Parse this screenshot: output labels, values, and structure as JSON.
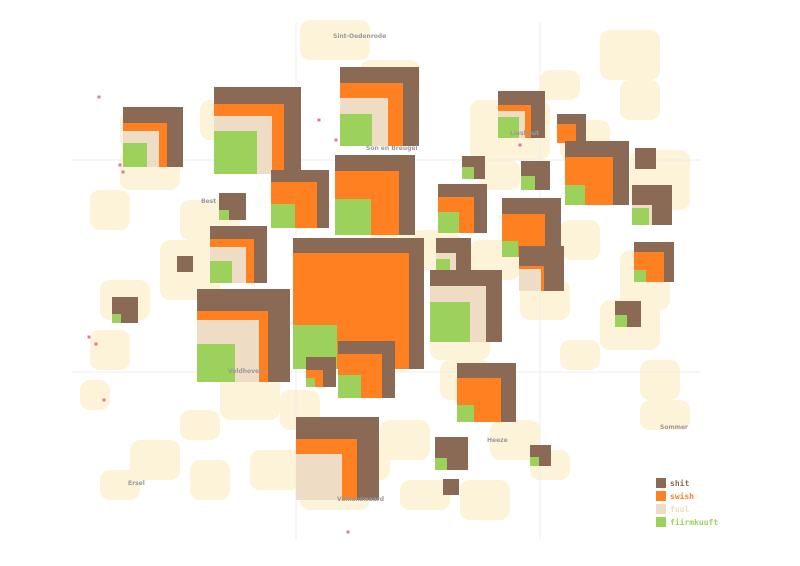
{
  "legend": {
    "title": "",
    "items": [
      {
        "label": "shit",
        "color": "#8a6a55"
      },
      {
        "label": "swish",
        "color": "#ff8020"
      },
      {
        "label": "fuul",
        "color": "#efdcc4"
      },
      {
        "label": "fiirmkuuft",
        "color": "#9cd15c"
      }
    ]
  },
  "places": [
    {
      "name": "Sint-Oedenrode"
    },
    {
      "name": "Son en Breugel"
    },
    {
      "name": "Lieshout"
    },
    {
      "name": "Best"
    },
    {
      "name": "Veldhoven"
    },
    {
      "name": "Heeze"
    },
    {
      "name": "Sommer"
    },
    {
      "name": "Valkenswaard"
    },
    {
      "name": "Ersel"
    }
  ],
  "colors": {
    "land": "#fdf3d8",
    "grid": "#ececec",
    "point": "#e07aa0"
  }
}
